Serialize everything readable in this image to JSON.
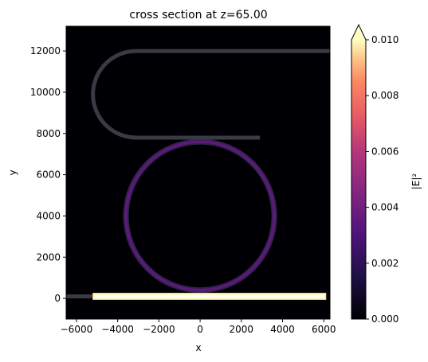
{
  "chart_data": {
    "type": "heatmap",
    "title": "cross section at z=65.00",
    "xlabel": "x",
    "ylabel": "y",
    "xlim": [
      -6500,
      6300
    ],
    "ylim": [
      -1000,
      13200
    ],
    "x_ticks": [
      -6000,
      -4000,
      -2000,
      0,
      2000,
      4000,
      6000
    ],
    "y_ticks": [
      0,
      2000,
      4000,
      6000,
      8000,
      10000,
      12000
    ],
    "x_tick_labels": [
      "−6000",
      "−4000",
      "−2000",
      "0",
      "2000",
      "4000",
      "6000"
    ],
    "y_tick_labels": [
      "0",
      "2000",
      "4000",
      "6000",
      "8000",
      "10000",
      "12000"
    ],
    "colormap": "magma",
    "colorbar": {
      "label": "|E|²",
      "range": [
        0.0,
        0.01
      ],
      "ticks": [
        0.0,
        0.002,
        0.004,
        0.006,
        0.008,
        0.01
      ],
      "tick_labels": [
        "0.000",
        "0.002",
        "0.004",
        "0.006",
        "0.008",
        "0.010"
      ],
      "extend": "max"
    },
    "grid": false,
    "structures": [
      {
        "name": "bus waveguide (input lead)",
        "x": [
          -6500,
          -5200
        ],
        "y": 100,
        "intensity": 0.0006
      },
      {
        "name": "bus waveguide",
        "x": [
          -5200,
          6100
        ],
        "y": 100,
        "intensity": 0.01
      },
      {
        "name": "ring resonator",
        "center": [
          0,
          4000
        ],
        "radius": 3600,
        "intensity": 0.0035
      },
      {
        "name": "drop waveguide lower arm",
        "x": [
          -3100,
          2900
        ],
        "y": 7800,
        "intensity": 0.0006
      },
      {
        "name": "drop waveguide U-bend",
        "center": [
          -3100,
          9900
        ],
        "radius": 2100,
        "intensity": 0.0006
      },
      {
        "name": "drop waveguide upper arm",
        "x": [
          -3100,
          6300
        ],
        "y": 12000,
        "intensity": 0.0006
      }
    ]
  }
}
